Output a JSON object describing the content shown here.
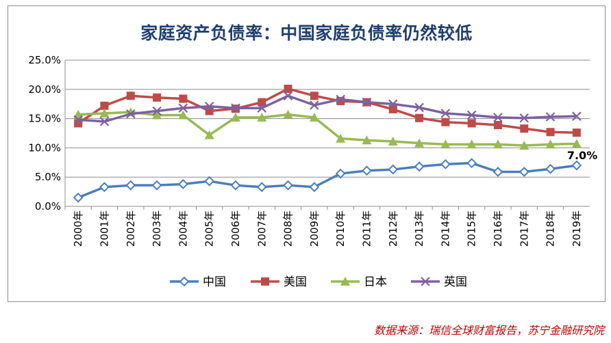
{
  "title": "家庭资产负债率：中国家庭负债率仍然较低",
  "source": "数据来源：瑞信全球财富报告，苏宁金融研究院",
  "chart_data": {
    "type": "line",
    "categories": [
      "2000年",
      "2001年",
      "2002年",
      "2003年",
      "2004年",
      "2005年",
      "2006年",
      "2007年",
      "2008年",
      "2009年",
      "2010年",
      "2011年",
      "2012年",
      "2013年",
      "2014年",
      "2015年",
      "2016年",
      "2017年",
      "2018年",
      "2019年"
    ],
    "ylim": [
      0,
      25
    ],
    "yticks": [
      "0.0%",
      "5.0%",
      "10.0%",
      "15.0%",
      "20.0%",
      "25.0%"
    ],
    "grid": true,
    "legend_position": "bottom",
    "series": [
      {
        "name": "中国",
        "color": "#4a7ebb",
        "marker": "diamond",
        "values": [
          1.5,
          3.3,
          3.6,
          3.6,
          3.8,
          4.3,
          3.6,
          3.3,
          3.6,
          3.3,
          5.6,
          6.1,
          6.3,
          6.8,
          7.2,
          7.4,
          5.9,
          5.9,
          6.4,
          7.0
        ]
      },
      {
        "name": "美国",
        "color": "#be4b48",
        "marker": "square",
        "values": [
          14.2,
          17.2,
          18.9,
          18.6,
          18.4,
          16.3,
          16.7,
          17.8,
          20.1,
          18.9,
          18.0,
          17.8,
          16.6,
          15.1,
          14.4,
          14.2,
          13.9,
          13.3,
          12.7,
          12.6
        ]
      },
      {
        "name": "日本",
        "color": "#98b954",
        "marker": "triangle",
        "values": [
          15.7,
          15.9,
          16.1,
          15.6,
          15.6,
          12.2,
          15.2,
          15.2,
          15.7,
          15.2,
          11.6,
          11.3,
          11.1,
          10.8,
          10.6,
          10.6,
          10.6,
          10.4,
          10.6,
          10.7
        ]
      },
      {
        "name": "英国",
        "color": "#7d60a0",
        "marker": "x",
        "values": [
          14.8,
          14.5,
          15.8,
          16.3,
          16.8,
          17.1,
          16.8,
          16.8,
          18.9,
          17.3,
          18.3,
          17.8,
          17.5,
          16.9,
          15.9,
          15.6,
          15.2,
          15.1,
          15.3,
          15.4
        ]
      }
    ],
    "annotations": [
      {
        "series": "中国",
        "category": "2019年",
        "text": "7.0%"
      }
    ]
  }
}
